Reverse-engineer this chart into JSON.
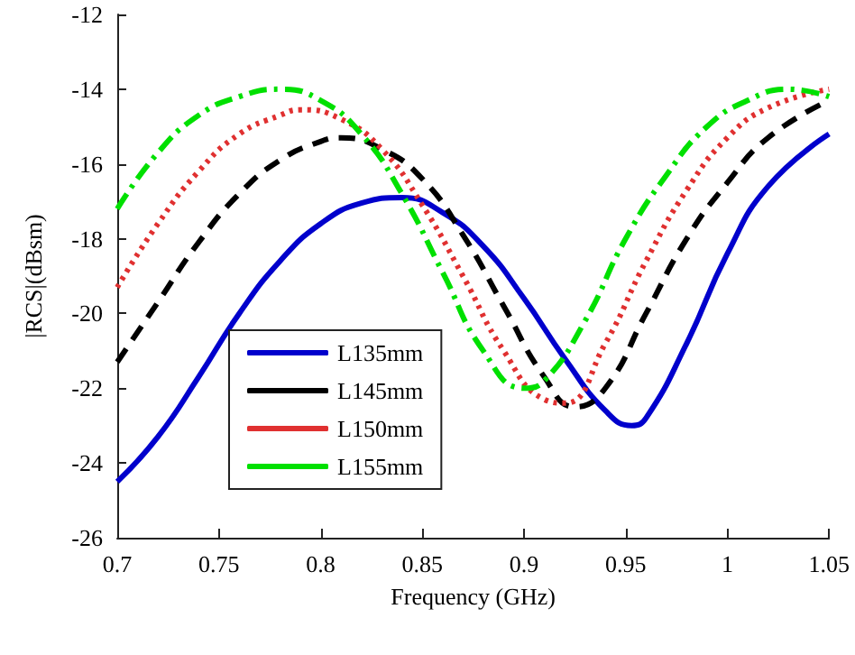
{
  "chart_data": {
    "type": "line",
    "xlabel": "Frequency (GHz)",
    "ylabel": "|RCS|(dBsm)",
    "xlim": [
      0.7,
      1.05
    ],
    "xticks": [
      0.7,
      0.75,
      0.8,
      0.85,
      0.9,
      0.95,
      1,
      1.05
    ],
    "ylim": [
      -26,
      -12
    ],
    "yticks": [
      -26,
      -24,
      -22,
      -20,
      -18,
      -16,
      -14,
      -12
    ],
    "grid": false,
    "legend": "bottom",
    "marker": "none",
    "x": [
      0.7,
      0.72,
      0.74,
      0.76,
      0.78,
      0.8,
      0.82,
      0.84,
      0.86,
      0.88,
      0.9,
      0.92,
      0.94,
      0.953,
      0.96,
      0.98,
      1.0,
      1.02,
      1.05
    ],
    "series": [
      {
        "name": "L135mm",
        "color": "#0000cc",
        "line_style": "solid",
        "values": [
          -24.5,
          -23.3,
          -21.7,
          -20.0,
          -18.6,
          -17.6,
          -17.05,
          -16.9,
          -17.3,
          -18.2,
          -19.6,
          -21.2,
          -22.6,
          -23.0,
          -22.8,
          -20.8,
          -18.4,
          -16.6,
          -15.2
        ]
      },
      {
        "name": "L145mm",
        "color": "#000000",
        "line_style": "dashed",
        "x": [
          0.7,
          0.72,
          0.74,
          0.76,
          0.78,
          0.8,
          0.81,
          0.83,
          0.85,
          0.87,
          0.89,
          0.91,
          0.925,
          0.94,
          0.96,
          0.98,
          1.0,
          1.02,
          1.05
        ],
        "values": [
          -21.3,
          -19.7,
          -18.1,
          -16.8,
          -15.9,
          -15.4,
          -15.3,
          -15.6,
          -16.4,
          -17.9,
          -19.8,
          -21.7,
          -22.5,
          -22.0,
          -20.0,
          -18.0,
          -16.5,
          -15.3,
          -14.3
        ]
      },
      {
        "name": "L150mm",
        "color": "#e03030",
        "line_style": "dotted",
        "x": [
          0.7,
          0.72,
          0.74,
          0.76,
          0.78,
          0.79,
          0.81,
          0.83,
          0.85,
          0.87,
          0.89,
          0.91,
          0.92,
          0.94,
          0.96,
          0.98,
          1.0,
          1.02,
          1.05
        ],
        "values": [
          -19.3,
          -17.6,
          -16.2,
          -15.2,
          -14.7,
          -14.55,
          -14.8,
          -15.6,
          -17.1,
          -19.0,
          -21.0,
          -22.3,
          -22.4,
          -20.8,
          -18.6,
          -16.7,
          -15.3,
          -14.5,
          -14.0
        ]
      },
      {
        "name": "L155mm",
        "color": "#00e000",
        "line_style": "dashdot",
        "x": [
          0.7,
          0.72,
          0.74,
          0.76,
          0.78,
          0.8,
          0.82,
          0.84,
          0.86,
          0.88,
          0.9,
          0.91,
          0.93,
          0.95,
          0.97,
          0.99,
          1.01,
          1.03,
          1.05
        ],
        "values": [
          -17.2,
          -15.7,
          -14.7,
          -14.2,
          -14.0,
          -14.3,
          -15.2,
          -16.8,
          -18.9,
          -21.0,
          -22.0,
          -21.8,
          -20.2,
          -18.0,
          -16.3,
          -15.0,
          -14.3,
          -14.0,
          -14.2
        ]
      }
    ]
  }
}
